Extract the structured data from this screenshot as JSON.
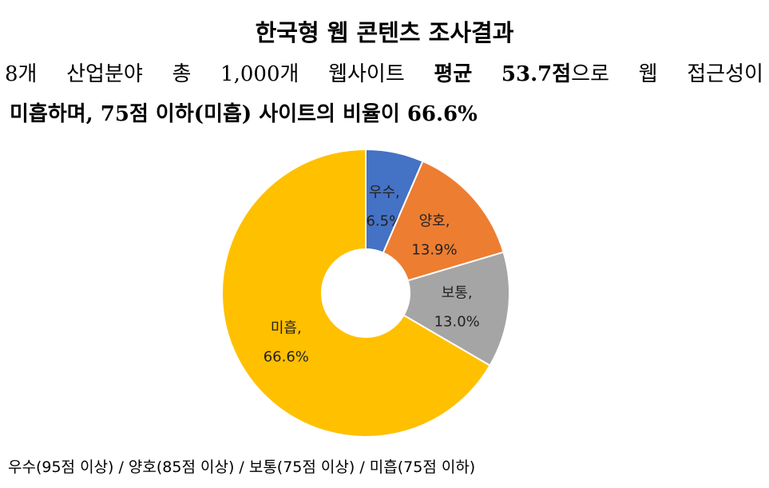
{
  "header": {
    "title": "한국형 웹 콘텐츠 조사결과",
    "line2_words": [
      "8개",
      "산업분야",
      "총",
      "1,000개",
      "웹사이트"
    ],
    "line2_bold": [
      "평균",
      "53.7점"
    ],
    "line2_tail": [
      "으로",
      "웹",
      "접근성이"
    ],
    "line3": "미흡하며, 75점 이하(미흡) 사이트의 비율이 66.6%"
  },
  "chart_data": {
    "type": "pie",
    "donut": true,
    "title": "",
    "categories": [
      "우수",
      "양호",
      "보통",
      "미흡"
    ],
    "values": [
      6.5,
      13.9,
      13.0,
      66.6
    ],
    "labels": [
      "6.5%",
      "13.9%",
      "13.0%",
      "66.6%"
    ],
    "colors": [
      "#4472C4",
      "#ED7D31",
      "#A5A5A5",
      "#FFC000"
    ]
  },
  "footer": "우수(95점 이상) / 양호(85점 이상) / 보통(75점 이상) / 미흡(75점 이하)"
}
